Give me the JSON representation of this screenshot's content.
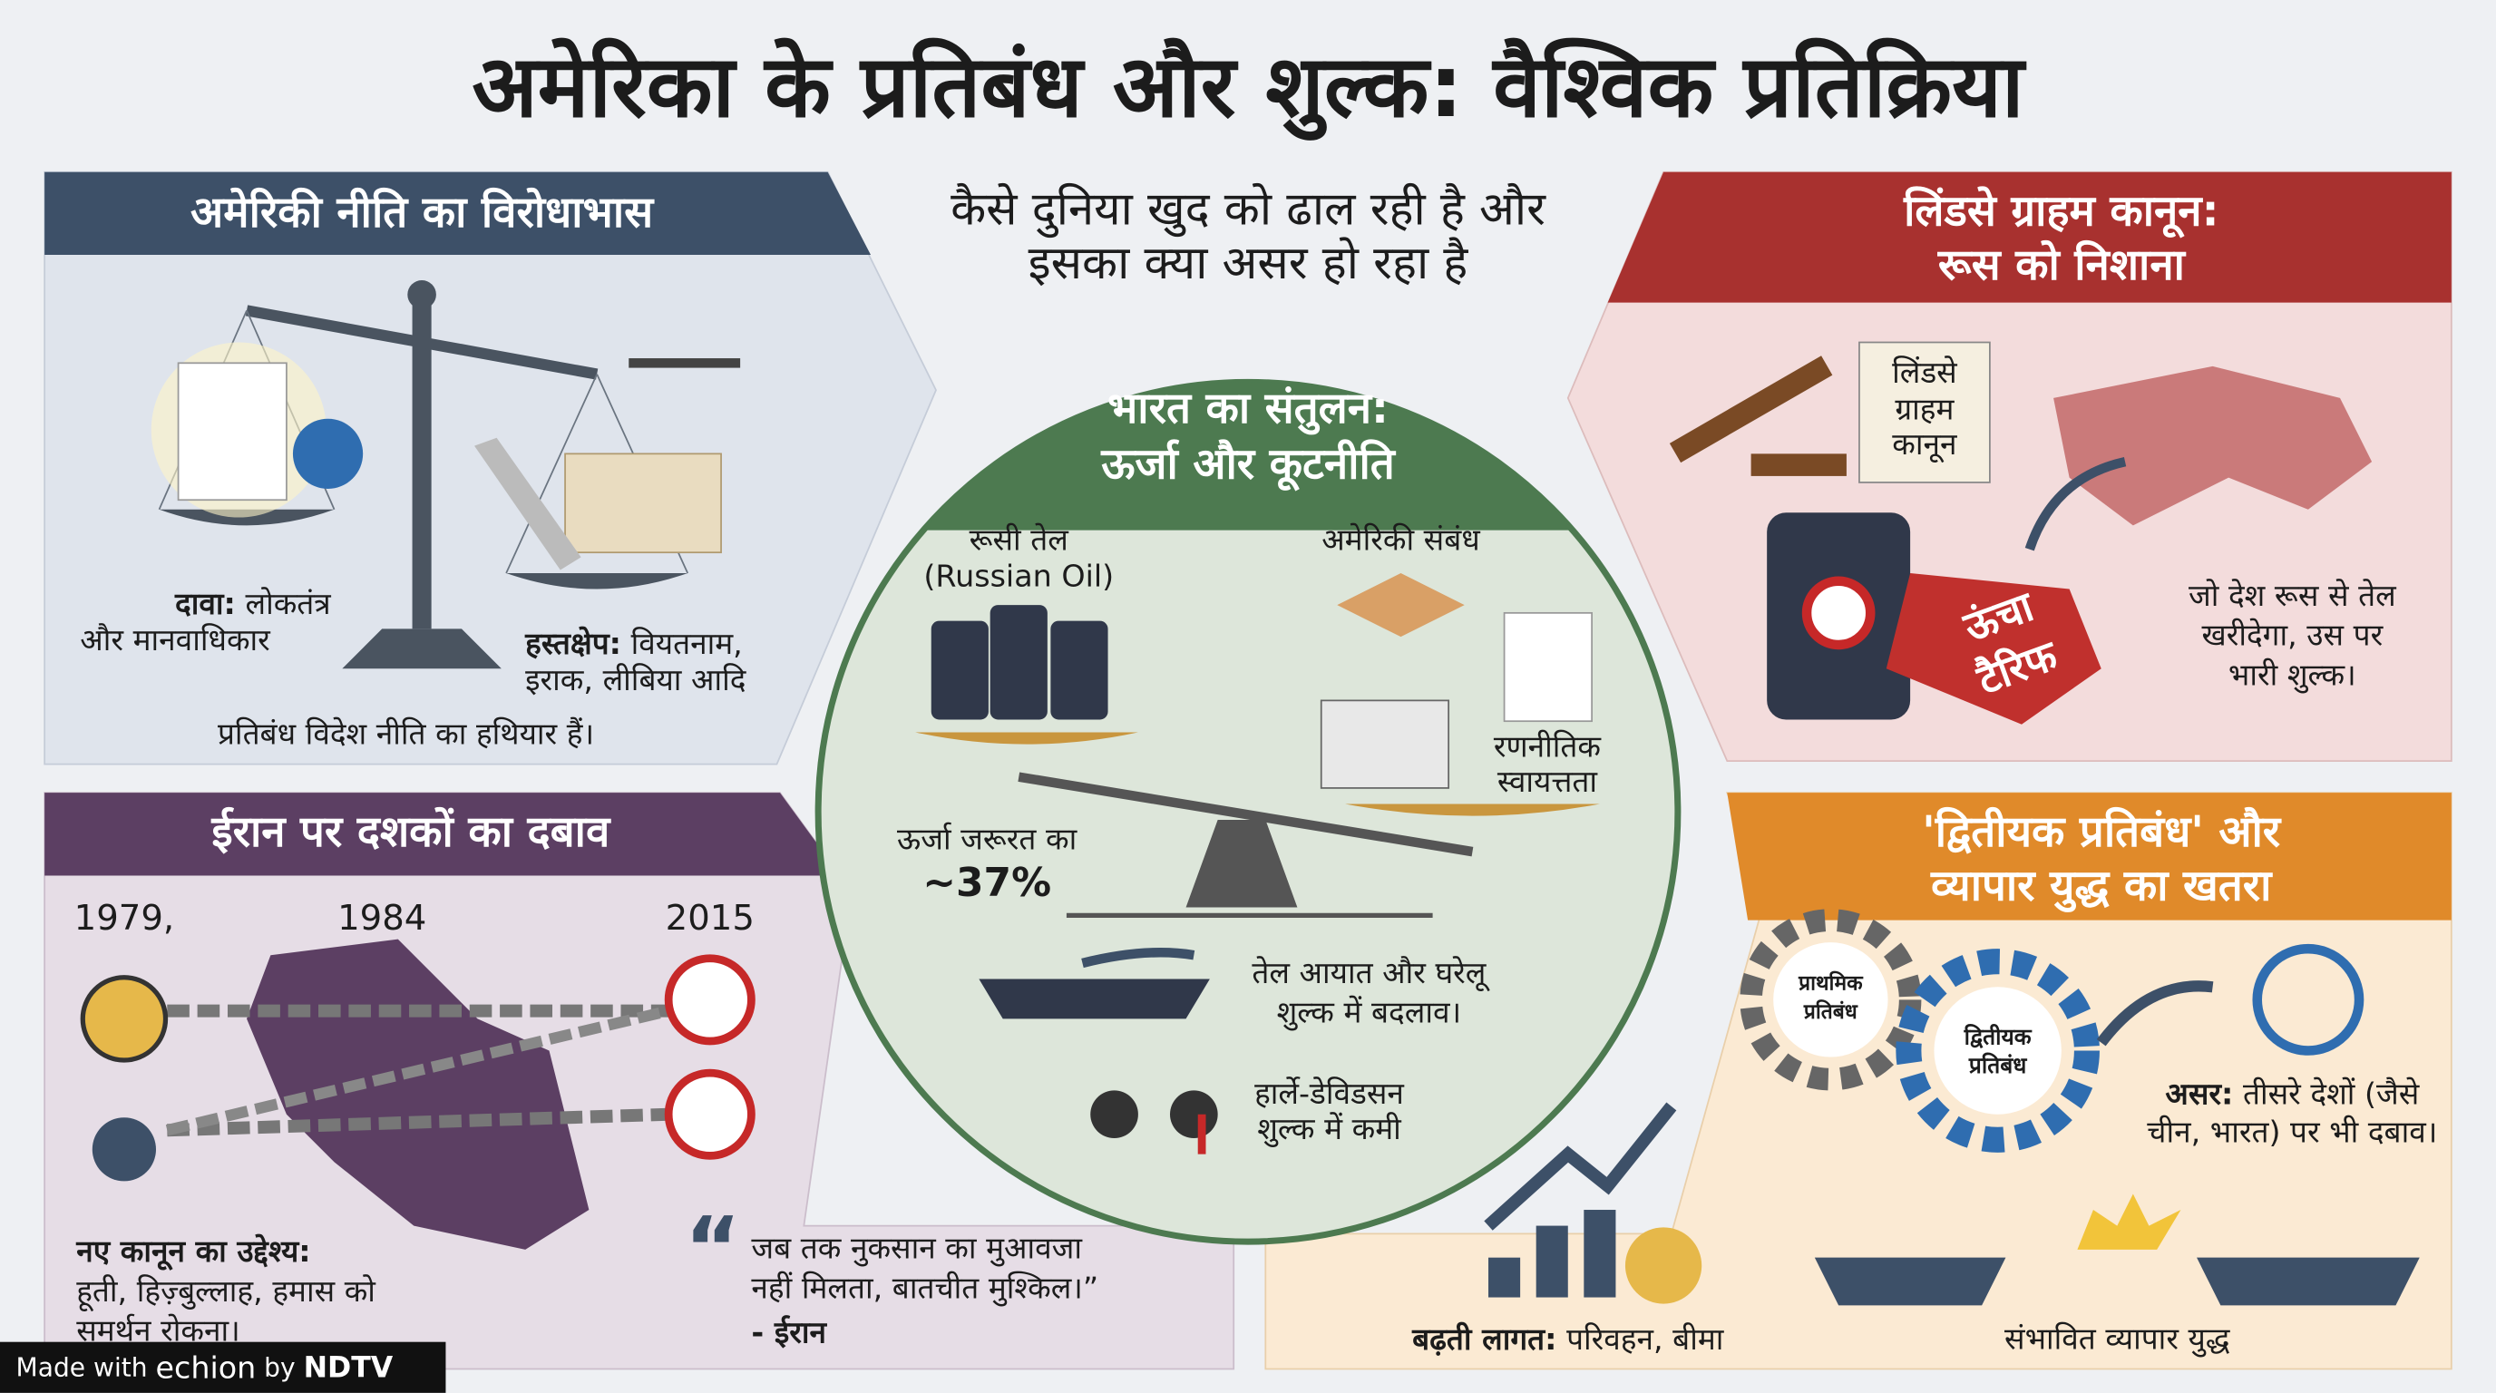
{
  "title": "अमेरिका के प्रतिबंध और शुल्क: वैश्विक प्रतिक्रिया",
  "subtitle": [
    "कैसे दुनिया खुद को ढाल रही है और",
    "इसका क्या असर हो रहा है"
  ],
  "us_policy": {
    "heading": "अमेरिकी नीति का विरोधाभास",
    "claim_label": "दावा:",
    "claim": [
      "लोकतंत्र",
      "और मानवाधिकार"
    ],
    "intervention_label": "हस्तक्षेप:",
    "intervention": [
      "वियतनाम,",
      "इराक, लीबिया आदि"
    ],
    "footer": "प्रतिबंध विदेश नीति का हथियार हैं।"
  },
  "iran": {
    "heading": "ईरान पर दशकों का दबाव",
    "years": [
      "1979,",
      "1984",
      "2015"
    ],
    "aim_label": "नए कानून का उद्देश्य:",
    "aim": [
      "हूती, हिज़्बुल्लाह, हमास को",
      "समर्थन रोकना।"
    ],
    "quote": [
      "जब तक नुकसान का मुआवजा",
      "नहीं मिलता, बातचीत मुश्किल।”"
    ],
    "quote_source": "- ईरान"
  },
  "india": {
    "heading": [
      "भारत का संतुलन:",
      "ऊर्जा और कूटनीति"
    ],
    "russian_oil": [
      "रूसी तेल",
      "(Russian Oil)"
    ],
    "us_relations": "अमेरिकी संबंध",
    "energy_need": "ऊर्जा जरूरत का",
    "share": "~37%",
    "autonomy": [
      "रणनीतिक",
      "स्वायत्तता"
    ],
    "oil_import": [
      "तेल आयात और घरेलू",
      "शुल्क में बदलाव।"
    ],
    "harley": [
      "हार्ले-डेविडसन",
      "शुल्क में कमी"
    ]
  },
  "graham": {
    "heading": [
      "लिंडसे ग्राहम कानून:",
      "रूस को निशाना"
    ],
    "scroll": [
      "लिंडसे",
      "ग्राहम",
      "कानून"
    ],
    "tag": [
      "ऊंचा",
      "टैरिफ"
    ],
    "text": [
      "जो देश रूस से तेल",
      "खरीदेगा, उस पर",
      "भारी शुल्क।"
    ]
  },
  "secondary": {
    "heading": [
      "'द्वितीयक प्रतिबंध' और",
      "व्यापार युद्ध का खतरा"
    ],
    "primary_gear": [
      "प्राथमिक",
      "प्रतिबंध"
    ],
    "secondary_gear": [
      "द्वितीयक",
      "प्रतिबंध"
    ],
    "effect_label": "असर:",
    "effect": [
      "तीसरे देशों (जैसे",
      "चीन, भारत) पर भी दबाव।"
    ],
    "costs_label": "बढ़ती लागत:",
    "costs": "परिवहन, बीमा",
    "trade_war": "संभावित व्यापार युद्ध"
  },
  "footer": {
    "made_with": "Made with",
    "brand": "echion",
    "by": "by",
    "partner": "NDTV"
  }
}
